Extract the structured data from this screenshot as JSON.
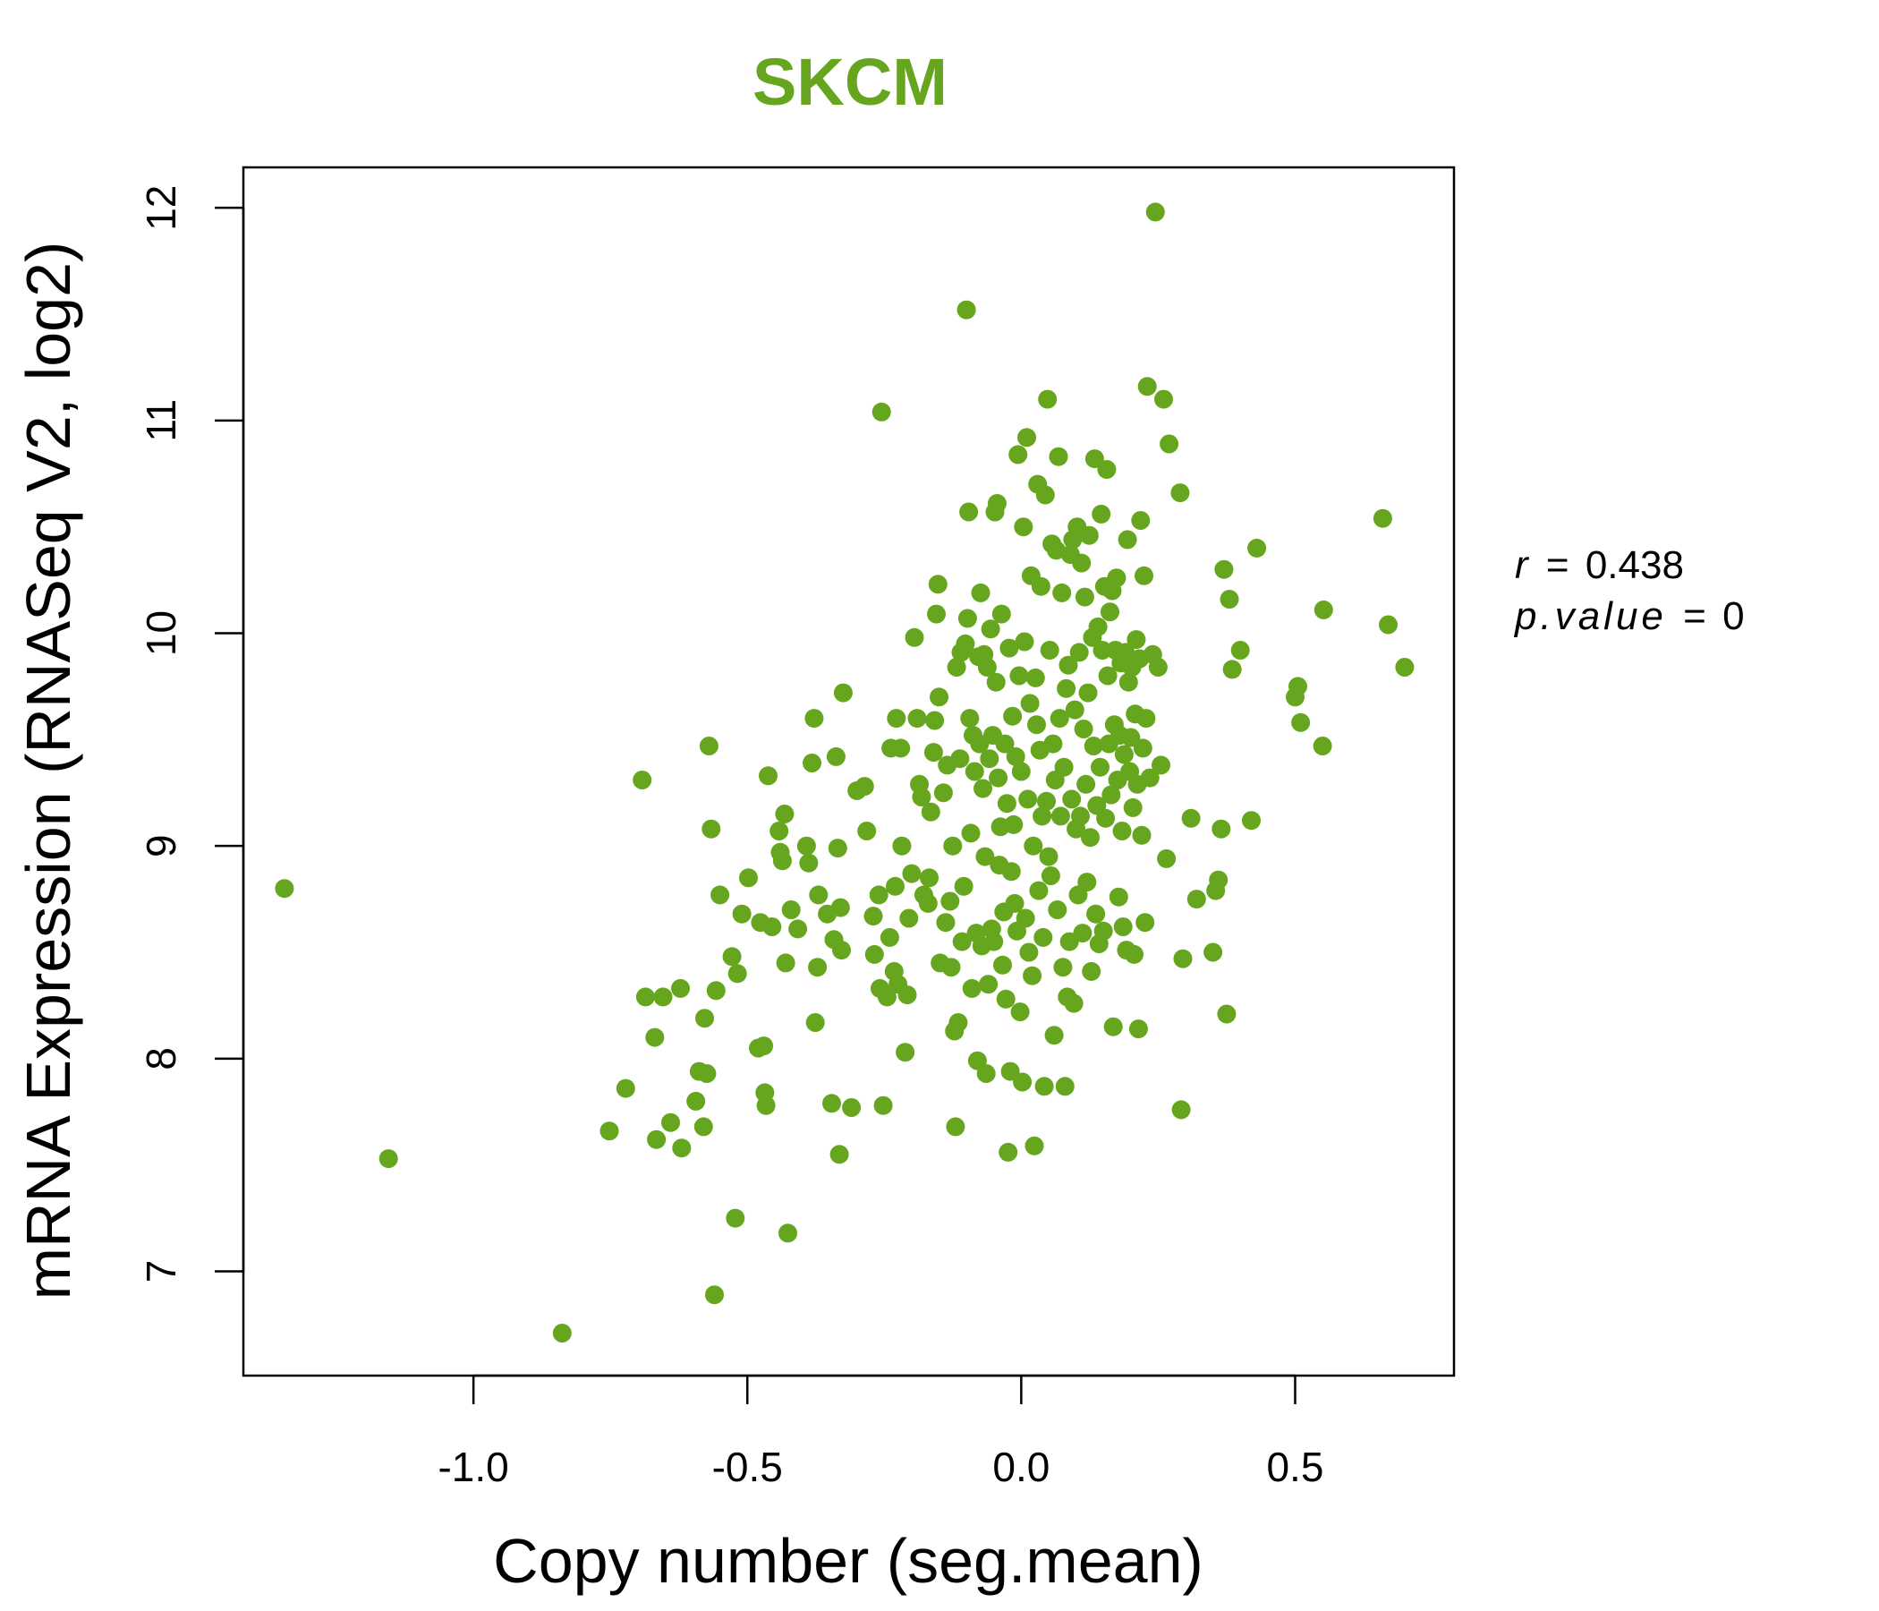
{
  "chart_data": {
    "type": "scatter",
    "title": "SKCM",
    "title_color": "#66a61e",
    "point_color": "#66a61e",
    "xlabel": "Copy number (seg.mean)",
    "ylabel": "mRNA Expression (RNASeq V2, log2)",
    "xlim": [
      -1.42,
      0.79
    ],
    "ylim": [
      6.51,
      12.19
    ],
    "x_ticks": [
      -1.0,
      -0.5,
      0.0,
      0.5
    ],
    "x_tick_labels": [
      "-1.0",
      "-0.5",
      "0.0",
      "0.5"
    ],
    "y_ticks": [
      7,
      8,
      9,
      10,
      11,
      12
    ],
    "y_tick_labels": [
      "7",
      "8",
      "9",
      "10",
      "11",
      "12"
    ],
    "grid": false,
    "annotations": {
      "r_label": "r",
      "r_value": "0.438",
      "p_label": "p.value",
      "p_value": "0"
    },
    "points": [
      [
        -1.345,
        8.8
      ],
      [
        -1.155,
        7.53
      ],
      [
        -0.838,
        6.71
      ],
      [
        -0.752,
        7.66
      ],
      [
        -0.722,
        7.86
      ],
      [
        -0.692,
        9.31
      ],
      [
        -0.686,
        8.29
      ],
      [
        -0.669,
        8.1
      ],
      [
        -0.666,
        7.62
      ],
      [
        -0.654,
        8.29
      ],
      [
        -0.64,
        7.7
      ],
      [
        -0.622,
        8.33
      ],
      [
        -0.62,
        7.58
      ],
      [
        -0.594,
        7.8
      ],
      [
        -0.588,
        7.94
      ],
      [
        -0.58,
        7.68
      ],
      [
        -0.578,
        8.19
      ],
      [
        -0.574,
        7.93
      ],
      [
        -0.57,
        9.47
      ],
      [
        -0.566,
        9.08
      ],
      [
        -0.56,
        6.89
      ],
      [
        -0.557,
        8.32
      ],
      [
        -0.55,
        8.77
      ],
      [
        -0.528,
        8.48
      ],
      [
        -0.522,
        7.25
      ],
      [
        -0.518,
        8.4
      ],
      [
        -0.51,
        8.68
      ],
      [
        -0.498,
        8.85
      ],
      [
        -0.48,
        8.05
      ],
      [
        -0.476,
        8.64
      ],
      [
        -0.47,
        8.06
      ],
      [
        -0.468,
        7.84
      ],
      [
        -0.466,
        7.78
      ],
      [
        -0.462,
        9.33
      ],
      [
        -0.455,
        8.62
      ],
      [
        -0.442,
        9.07
      ],
      [
        -0.44,
        8.97
      ],
      [
        -0.436,
        8.93
      ],
      [
        -0.432,
        9.15
      ],
      [
        -0.43,
        8.45
      ],
      [
        -0.426,
        7.18
      ],
      [
        -0.42,
        8.7
      ],
      [
        -0.408,
        8.61
      ],
      [
        -0.392,
        9.0
      ],
      [
        -0.388,
        8.92
      ],
      [
        -0.382,
        9.39
      ],
      [
        -0.378,
        9.6
      ],
      [
        -0.376,
        8.17
      ],
      [
        -0.372,
        8.43
      ],
      [
        -0.37,
        8.77
      ],
      [
        -0.354,
        8.68
      ],
      [
        -0.346,
        7.79
      ],
      [
        -0.342,
        8.56
      ],
      [
        -0.338,
        9.42
      ],
      [
        -0.335,
        8.99
      ],
      [
        -0.332,
        7.55
      ],
      [
        -0.33,
        8.71
      ],
      [
        -0.328,
        8.51
      ],
      [
        -0.325,
        9.72
      ],
      [
        -0.31,
        7.77
      ],
      [
        -0.3,
        9.26
      ],
      [
        -0.286,
        9.28
      ],
      [
        -0.282,
        9.07
      ],
      [
        -0.27,
        8.67
      ],
      [
        -0.268,
        8.49
      ],
      [
        -0.26,
        8.77
      ],
      [
        -0.258,
        8.33
      ],
      [
        -0.255,
        11.04
      ],
      [
        -0.252,
        7.78
      ],
      [
        -0.245,
        8.29
      ],
      [
        -0.24,
        8.57
      ],
      [
        -0.238,
        9.46
      ],
      [
        -0.232,
        8.41
      ],
      [
        -0.23,
        8.81
      ],
      [
        -0.228,
        9.6
      ],
      [
        -0.225,
        8.35
      ],
      [
        -0.22,
        9.46
      ],
      [
        -0.218,
        9.0
      ],
      [
        -0.212,
        8.03
      ],
      [
        -0.208,
        8.3
      ],
      [
        -0.205,
        8.66
      ],
      [
        -0.2,
        8.87
      ],
      [
        -0.195,
        9.98
      ],
      [
        -0.19,
        9.6
      ],
      [
        -0.186,
        9.29
      ],
      [
        -0.182,
        9.23
      ],
      [
        -0.178,
        8.77
      ],
      [
        -0.17,
        8.73
      ],
      [
        -0.168,
        8.85
      ],
      [
        -0.165,
        9.16
      ],
      [
        -0.16,
        9.44
      ],
      [
        -0.158,
        9.59
      ],
      [
        -0.155,
        10.09
      ],
      [
        -0.152,
        10.23
      ],
      [
        -0.15,
        9.7
      ],
      [
        -0.148,
        8.45
      ],
      [
        -0.142,
        9.25
      ],
      [
        -0.138,
        8.64
      ],
      [
        -0.135,
        9.38
      ],
      [
        -0.13,
        8.74
      ],
      [
        -0.128,
        8.43
      ],
      [
        -0.125,
        9.0
      ],
      [
        -0.122,
        8.13
      ],
      [
        -0.12,
        7.68
      ],
      [
        -0.118,
        9.84
      ],
      [
        -0.115,
        8.17
      ],
      [
        -0.112,
        9.41
      ],
      [
        -0.11,
        9.91
      ],
      [
        -0.108,
        8.55
      ],
      [
        -0.105,
        8.81
      ],
      [
        -0.102,
        9.95
      ],
      [
        -0.1,
        11.52
      ],
      [
        -0.098,
        10.07
      ],
      [
        -0.096,
        10.57
      ],
      [
        -0.094,
        9.6
      ],
      [
        -0.092,
        9.06
      ],
      [
        -0.09,
        8.33
      ],
      [
        -0.088,
        9.52
      ],
      [
        -0.085,
        9.35
      ],
      [
        -0.082,
        8.59
      ],
      [
        -0.08,
        7.99
      ],
      [
        -0.078,
        9.89
      ],
      [
        -0.076,
        9.48
      ],
      [
        -0.074,
        10.19
      ],
      [
        -0.072,
        8.53
      ],
      [
        -0.07,
        9.27
      ],
      [
        -0.068,
        9.9
      ],
      [
        -0.066,
        8.95
      ],
      [
        -0.064,
        7.93
      ],
      [
        -0.062,
        9.84
      ],
      [
        -0.06,
        8.35
      ],
      [
        -0.058,
        9.41
      ],
      [
        -0.056,
        10.02
      ],
      [
        -0.054,
        8.61
      ],
      [
        -0.052,
        9.52
      ],
      [
        -0.05,
        8.55
      ],
      [
        -0.048,
        10.57
      ],
      [
        -0.046,
        9.77
      ],
      [
        -0.044,
        10.61
      ],
      [
        -0.042,
        9.32
      ],
      [
        -0.04,
        8.91
      ],
      [
        -0.038,
        9.09
      ],
      [
        -0.036,
        10.09
      ],
      [
        -0.034,
        8.44
      ],
      [
        -0.032,
        8.69
      ],
      [
        -0.03,
        9.48
      ],
      [
        -0.028,
        8.28
      ],
      [
        -0.026,
        9.2
      ],
      [
        -0.024,
        7.56
      ],
      [
        -0.022,
        9.93
      ],
      [
        -0.02,
        7.94
      ],
      [
        -0.018,
        8.88
      ],
      [
        -0.016,
        9.61
      ],
      [
        -0.014,
        9.1
      ],
      [
        -0.012,
        8.73
      ],
      [
        -0.01,
        9.42
      ],
      [
        -0.008,
        8.6
      ],
      [
        -0.006,
        10.84
      ],
      [
        -0.004,
        9.8
      ],
      [
        -0.002,
        8.22
      ],
      [
        0.0,
        9.35
      ],
      [
        0.002,
        7.89
      ],
      [
        0.004,
        10.5
      ],
      [
        0.006,
        9.96
      ],
      [
        0.008,
        8.66
      ],
      [
        0.01,
        10.92
      ],
      [
        0.012,
        9.22
      ],
      [
        0.014,
        8.5
      ],
      [
        0.016,
        9.67
      ],
      [
        0.018,
        10.27
      ],
      [
        0.02,
        8.39
      ],
      [
        0.022,
        9.0
      ],
      [
        0.024,
        7.59
      ],
      [
        0.026,
        9.79
      ],
      [
        0.028,
        9.57
      ],
      [
        0.03,
        10.7
      ],
      [
        0.032,
        8.79
      ],
      [
        0.034,
        9.45
      ],
      [
        0.036,
        10.22
      ],
      [
        0.038,
        9.14
      ],
      [
        0.04,
        8.57
      ],
      [
        0.042,
        7.87
      ],
      [
        0.044,
        10.65
      ],
      [
        0.046,
        9.21
      ],
      [
        0.048,
        11.1
      ],
      [
        0.05,
        8.95
      ],
      [
        0.052,
        9.92
      ],
      [
        0.054,
        8.86
      ],
      [
        0.056,
        10.42
      ],
      [
        0.058,
        9.48
      ],
      [
        0.06,
        8.11
      ],
      [
        0.062,
        9.31
      ],
      [
        0.064,
        10.39
      ],
      [
        0.066,
        8.7
      ],
      [
        0.068,
        10.83
      ],
      [
        0.07,
        9.6
      ],
      [
        0.072,
        9.14
      ],
      [
        0.074,
        10.19
      ],
      [
        0.076,
        8.43
      ],
      [
        0.078,
        9.37
      ],
      [
        0.08,
        7.87
      ],
      [
        0.082,
        9.74
      ],
      [
        0.084,
        8.29
      ],
      [
        0.086,
        9.85
      ],
      [
        0.088,
        8.55
      ],
      [
        0.09,
        10.37
      ],
      [
        0.092,
        9.22
      ],
      [
        0.094,
        10.44
      ],
      [
        0.096,
        8.26
      ],
      [
        0.098,
        9.64
      ],
      [
        0.1,
        9.08
      ],
      [
        0.102,
        10.5
      ],
      [
        0.104,
        8.77
      ],
      [
        0.106,
        9.91
      ],
      [
        0.108,
        9.14
      ],
      [
        0.11,
        10.33
      ],
      [
        0.112,
        8.59
      ],
      [
        0.114,
        9.55
      ],
      [
        0.116,
        10.17
      ],
      [
        0.118,
        9.29
      ],
      [
        0.12,
        8.83
      ],
      [
        0.122,
        9.72
      ],
      [
        0.124,
        10.46
      ],
      [
        0.126,
        9.04
      ],
      [
        0.128,
        8.41
      ],
      [
        0.13,
        9.98
      ],
      [
        0.132,
        9.47
      ],
      [
        0.134,
        10.82
      ],
      [
        0.136,
        8.68
      ],
      [
        0.138,
        9.19
      ],
      [
        0.14,
        10.03
      ],
      [
        0.142,
        8.54
      ],
      [
        0.144,
        9.37
      ],
      [
        0.146,
        10.56
      ],
      [
        0.148,
        9.92
      ],
      [
        0.15,
        8.6
      ],
      [
        0.152,
        10.22
      ],
      [
        0.154,
        9.13
      ],
      [
        0.156,
        10.77
      ],
      [
        0.158,
        9.8
      ],
      [
        0.16,
        9.48
      ],
      [
        0.162,
        10.1
      ],
      [
        0.164,
        9.24
      ],
      [
        0.166,
        10.2
      ],
      [
        0.168,
        8.15
      ],
      [
        0.17,
        9.57
      ],
      [
        0.172,
        9.92
      ],
      [
        0.174,
        10.26
      ],
      [
        0.176,
        9.31
      ],
      [
        0.178,
        8.76
      ],
      [
        0.18,
        9.52
      ],
      [
        0.182,
        9.86
      ],
      [
        0.184,
        9.07
      ],
      [
        0.186,
        8.62
      ],
      [
        0.188,
        9.43
      ],
      [
        0.19,
        9.91
      ],
      [
        0.192,
        8.51
      ],
      [
        0.194,
        10.44
      ],
      [
        0.196,
        9.77
      ],
      [
        0.198,
        9.35
      ],
      [
        0.2,
        9.51
      ],
      [
        0.202,
        9.84
      ],
      [
        0.204,
        9.18
      ],
      [
        0.206,
        8.49
      ],
      [
        0.208,
        9.62
      ],
      [
        0.21,
        9.97
      ],
      [
        0.212,
        9.29
      ],
      [
        0.214,
        8.14
      ],
      [
        0.216,
        9.88
      ],
      [
        0.218,
        10.53
      ],
      [
        0.22,
        9.05
      ],
      [
        0.222,
        9.46
      ],
      [
        0.224,
        10.27
      ],
      [
        0.226,
        8.64
      ],
      [
        0.228,
        9.6
      ],
      [
        0.23,
        11.16
      ],
      [
        0.235,
        9.32
      ],
      [
        0.24,
        9.9
      ],
      [
        0.245,
        11.98
      ],
      [
        0.25,
        9.84
      ],
      [
        0.255,
        9.38
      ],
      [
        0.26,
        11.1
      ],
      [
        0.265,
        8.94
      ],
      [
        0.27,
        10.89
      ],
      [
        0.29,
        10.66
      ],
      [
        0.292,
        7.76
      ],
      [
        0.295,
        8.47
      ],
      [
        0.31,
        9.13
      ],
      [
        0.32,
        8.75
      ],
      [
        0.35,
        8.5
      ],
      [
        0.355,
        8.79
      ],
      [
        0.36,
        8.84
      ],
      [
        0.365,
        9.08
      ],
      [
        0.37,
        10.3
      ],
      [
        0.375,
        8.21
      ],
      [
        0.38,
        10.16
      ],
      [
        0.385,
        9.83
      ],
      [
        0.4,
        9.92
      ],
      [
        0.42,
        9.12
      ],
      [
        0.43,
        10.4
      ],
      [
        0.5,
        9.7
      ],
      [
        0.505,
        9.75
      ],
      [
        0.51,
        9.58
      ],
      [
        0.55,
        9.47
      ],
      [
        0.552,
        10.11
      ],
      [
        0.66,
        10.54
      ],
      [
        0.67,
        10.04
      ],
      [
        0.7,
        9.84
      ]
    ]
  }
}
